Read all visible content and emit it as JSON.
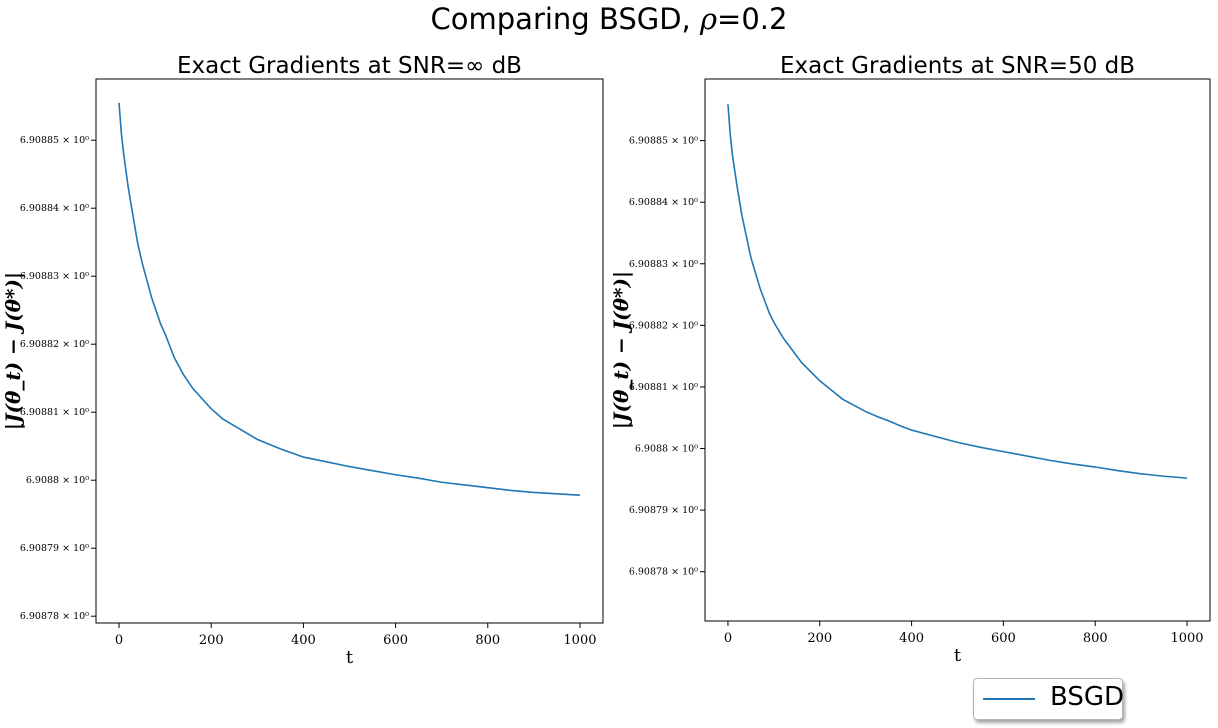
{
  "figure": {
    "title_text": "Comparing BSGD, ",
    "title_symbol": "ρ",
    "title_value": "=0.2"
  },
  "legend": {
    "label": "BSGD",
    "color": "#1f77b4",
    "placement": "lower-right"
  },
  "chart_data": [
    {
      "type": "line",
      "title": "Exact Gradients at SNR=∞ dB",
      "xlabel": "t",
      "ylabel": "|J(θ_t) − J(θ*)|",
      "yscale": "log",
      "xlim": [
        -50,
        1050
      ],
      "ylim": [
        6.908779,
        6.908859
      ],
      "xticks": [
        0,
        200,
        400,
        600,
        800,
        1000
      ],
      "xtick_labels": [
        "0",
        "200",
        "400",
        "600",
        "800",
        "1000"
      ],
      "yticks": [
        6.90878,
        6.90879,
        6.9088,
        6.90881,
        6.90882,
        6.90883,
        6.90884,
        6.90885
      ],
      "ytick_labels": [
        "6.90878 × 10⁰",
        "6.90879 × 10⁰",
        "6.9088 × 10⁰",
        "6.90881 × 10⁰",
        "6.90882 × 10⁰",
        "6.90883 × 10⁰",
        "6.90884 × 10⁰",
        "6.90885 × 10⁰"
      ],
      "grid": false,
      "series": [
        {
          "name": "BSGD",
          "color": "#1f77b4",
          "x": [
            0,
            5,
            10,
            20,
            30,
            40,
            50,
            60,
            70,
            80,
            90,
            100,
            120,
            140,
            160,
            180,
            200,
            225,
            250,
            275,
            300,
            325,
            350,
            375,
            400,
            450,
            500,
            550,
            600,
            650,
            700,
            750,
            800,
            850,
            900,
            950,
            1000
          ],
          "y": [
            6.9088555,
            6.908851,
            6.908848,
            6.908843,
            6.908839,
            6.908835,
            6.908832,
            6.9088295,
            6.908827,
            6.908825,
            6.908823,
            6.9088215,
            6.908818,
            6.9088155,
            6.9088135,
            6.908812,
            6.9088105,
            6.908809,
            6.908808,
            6.908807,
            6.908806,
            6.9088053,
            6.9088046,
            6.908804,
            6.9088034,
            6.9088027,
            6.908802,
            6.9088014,
            6.9088008,
            6.9088003,
            6.9087997,
            6.9087993,
            6.9087989,
            6.9087985,
            6.9087982,
            6.908798,
            6.9087978
          ]
        }
      ]
    },
    {
      "type": "line",
      "title": "Exact Gradients at SNR=50 dB",
      "xlabel": "t",
      "ylabel": "|J(θ_t) − J(θ*)|",
      "yscale": "log",
      "xlim": [
        -50,
        1050
      ],
      "ylim": [
        6.908772,
        6.90886
      ],
      "xticks": [
        0,
        200,
        400,
        600,
        800,
        1000
      ],
      "xtick_labels": [
        "0",
        "200",
        "400",
        "600",
        "800",
        "1000"
      ],
      "yticks": [
        6.90878,
        6.90879,
        6.9088,
        6.90881,
        6.90882,
        6.90883,
        6.90884,
        6.90885
      ],
      "ytick_labels": [
        "6.90878 × 10⁰",
        "6.90879 × 10⁰",
        "6.9088 × 10⁰",
        "6.90881 × 10⁰",
        "6.90882 × 10⁰",
        "6.90883 × 10⁰",
        "6.90884 × 10⁰",
        "6.90885 × 10⁰"
      ],
      "grid": false,
      "series": [
        {
          "name": "BSGD",
          "color": "#1f77b4",
          "x": [
            0,
            5,
            10,
            20,
            30,
            40,
            50,
            60,
            70,
            80,
            90,
            100,
            120,
            140,
            160,
            180,
            200,
            225,
            250,
            275,
            300,
            325,
            350,
            375,
            400,
            450,
            500,
            550,
            600,
            650,
            700,
            750,
            800,
            850,
            900,
            950,
            1000
          ],
          "y": [
            6.9088559,
            6.908851,
            6.9088475,
            6.9088425,
            6.908838,
            6.9088345,
            6.908831,
            6.9088285,
            6.908826,
            6.908824,
            6.908822,
            6.9088205,
            6.908818,
            6.908816,
            6.908814,
            6.9088125,
            6.908811,
            6.9088095,
            6.908808,
            6.908807,
            6.908806,
            6.9088052,
            6.9088045,
            6.9088037,
            6.908803,
            6.908802,
            6.908801,
            6.9088002,
            6.9087995,
            6.9087988,
            6.9087981,
            6.9087975,
            6.908797,
            6.9087964,
            6.9087959,
            6.9087955,
            6.9087952
          ]
        }
      ]
    }
  ]
}
